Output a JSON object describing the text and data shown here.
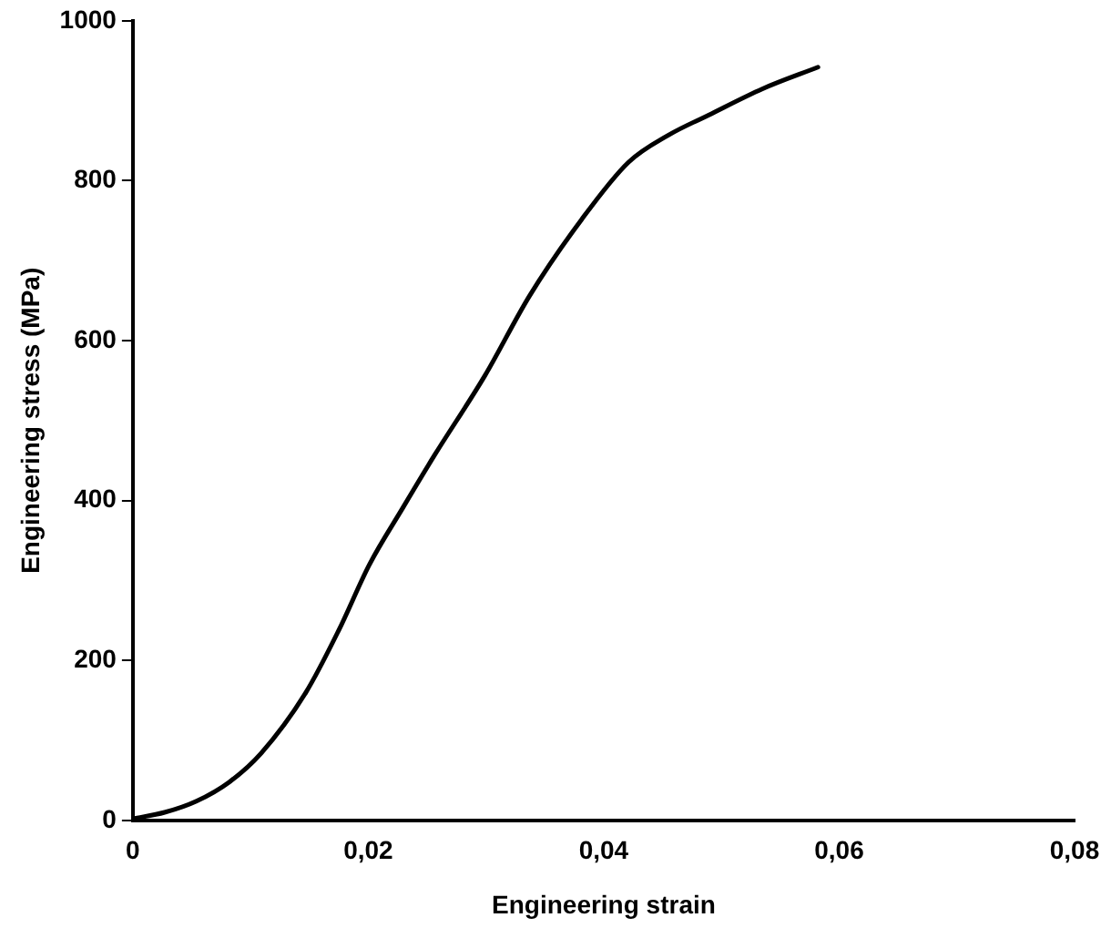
{
  "chart_data": {
    "type": "line",
    "xlabel": "Engineering strain",
    "ylabel": "Engineering stress (MPa)",
    "x": [
      0,
      0.0027,
      0.0054,
      0.0082,
      0.0109,
      0.0147,
      0.0175,
      0.0201,
      0.0229,
      0.0256,
      0.0299,
      0.0337,
      0.0381,
      0.0421,
      0.0455,
      0.0489,
      0.0535,
      0.0582
    ],
    "series": [
      {
        "color": "#000000",
        "values": [
          2,
          10,
          24,
          48,
          84,
          160,
          238,
          320,
          390,
          456,
          556,
          656,
          751,
          823,
          857,
          882,
          915,
          942
        ]
      }
    ],
    "xlim": [
      0,
      0.08
    ],
    "xticks": [
      {
        "value": 0,
        "label": "0"
      },
      {
        "value": 0.02,
        "label": "0,02"
      },
      {
        "value": 0.04,
        "label": "0,04"
      },
      {
        "value": 0.06,
        "label": "0,06"
      },
      {
        "value": 0.08,
        "label": "0,08"
      }
    ],
    "ylim": [
      0,
      1000
    ],
    "yticks": [
      0,
      200,
      400,
      600,
      800,
      1000
    ],
    "grid": false,
    "legend": false,
    "marker": "none",
    "line_style": "solid"
  }
}
